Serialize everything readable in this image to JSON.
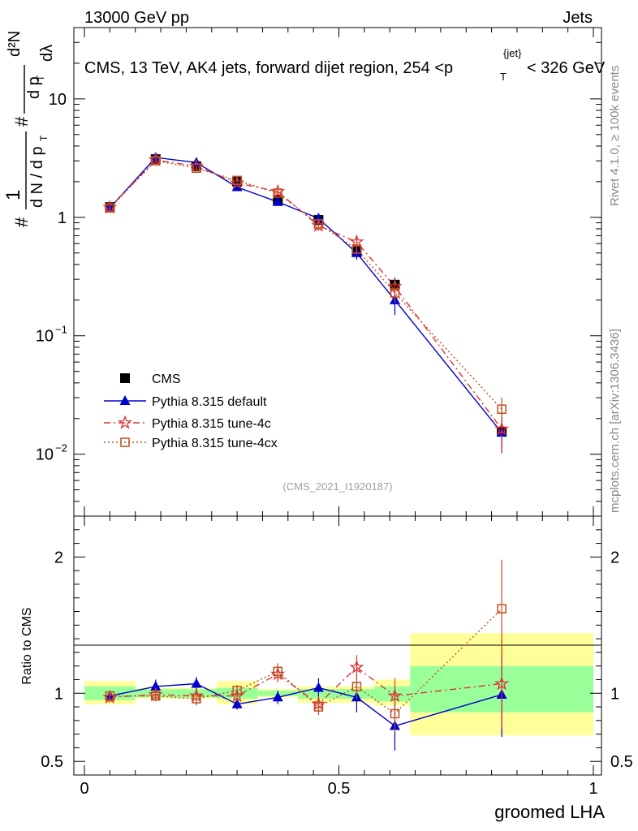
{
  "header": {
    "left": "13000 GeV pp",
    "right": "Jets"
  },
  "title": "CMS, 13 TeV, AK4 jets, forward dijet region, 254 <p",
  "title_sup": "{jet}",
  "title_sub": "T",
  "title_tail": "< 326 GeV",
  "side_text_top": "Rivet 4.1.0, ≥ 100k events",
  "side_text_bottom": "mcplots.cern.ch [arXiv:1306.3436]",
  "analysis_id": "(CMS_2021_I1920187)",
  "ylabel_main": {
    "hash1": "#",
    "one": "1",
    "dN": "d N / d p",
    "dN_sub": "T",
    "hash2": "#",
    "d2N": "d²N",
    "dp": "d p",
    "dp_sub": "T",
    "dl": "dλ"
  },
  "ylabel_ratio": "Ratio to CMS",
  "xlabel": "groomed LHA",
  "colors": {
    "cms": "#000000",
    "default": "#0000cc",
    "tune4c": "#dd3333",
    "tune4cx": "#c05020",
    "band_yellow": "#ffff99",
    "band_green": "#99ff99"
  },
  "chart_data": {
    "type": "scatter",
    "x": [
      0.05,
      0.14,
      0.22,
      0.3,
      0.38,
      0.46,
      0.535,
      0.61,
      0.82
    ],
    "xbins": [
      [
        0,
        0.1
      ],
      [
        0.1,
        0.18
      ],
      [
        0.18,
        0.26
      ],
      [
        0.26,
        0.34
      ],
      [
        0.34,
        0.42
      ],
      [
        0.42,
        0.5
      ],
      [
        0.5,
        0.57
      ],
      [
        0.57,
        0.64
      ],
      [
        0.64,
        1.0
      ]
    ],
    "xlim": [
      0,
      1
    ],
    "xticks": [
      "0",
      "0.5",
      "1"
    ],
    "ylim_main": [
      0.003,
      40
    ],
    "yscale_main": "log",
    "yticks_main": [
      {
        "v": 10,
        "base": "10",
        "exp": ""
      },
      {
        "v": 1,
        "base": "1",
        "exp": ""
      },
      {
        "v": 0.1,
        "base": "10",
        "exp": "−1"
      },
      {
        "v": 0.01,
        "base": "10",
        "exp": "−2"
      }
    ],
    "ylim_ratio": [
      0.4,
      2.3
    ],
    "yticks_ratio": [
      "0.5",
      "1",
      "2"
    ],
    "ytick_ratio_values": [
      0.5,
      1,
      2
    ],
    "series": [
      {
        "name": "CMS",
        "key": "cms",
        "marker": "square",
        "values": [
          1.22,
          3.1,
          2.7,
          2.0,
          1.4,
          0.95,
          0.52,
          0.27,
          0.0155
        ],
        "err": [
          0.06,
          0.1,
          0.1,
          0.08,
          0.07,
          0.06,
          0.05,
          0.04,
          0.004
        ],
        "ratio": [
          1,
          1,
          1,
          1,
          1,
          1,
          1,
          1,
          1
        ]
      },
      {
        "name": "Pythia 8.315 default",
        "key": "default",
        "marker": "triangle",
        "line": "solid",
        "values": [
          1.2,
          3.2,
          2.9,
          1.8,
          1.35,
          0.98,
          0.5,
          0.2,
          0.0152
        ],
        "err": [
          0.04,
          0.1,
          0.1,
          0.07,
          0.07,
          0.08,
          0.06,
          0.05,
          0.005
        ],
        "ratio": [
          0.98,
          1.05,
          1.07,
          0.92,
          0.97,
          1.04,
          0.97,
          0.76,
          0.99
        ],
        "ratio_err": [
          0.04,
          0.05,
          0.05,
          0.04,
          0.05,
          0.07,
          0.11,
          0.18,
          0.31
        ]
      },
      {
        "name": "Pythia 8.315 tune-4c",
        "key": "tune4c",
        "marker": "star",
        "line": "dashdot",
        "values": [
          1.21,
          3.05,
          2.7,
          1.95,
          1.65,
          0.85,
          0.62,
          0.26,
          0.0163
        ],
        "err": [
          0.04,
          0.1,
          0.1,
          0.07,
          0.08,
          0.08,
          0.07,
          0.04,
          0.006
        ],
        "ratio": [
          0.97,
          0.99,
          0.98,
          0.98,
          1.14,
          0.92,
          1.19,
          0.98,
          1.07
        ],
        "ratio_err": [
          0.04,
          0.04,
          0.05,
          0.04,
          0.06,
          0.06,
          0.09,
          0.13,
          0.33
        ]
      },
      {
        "name": "Pythia 8.315 tune-4cx",
        "key": "tune4cx",
        "marker": "opensquare",
        "line": "dotted",
        "values": [
          1.2,
          3.0,
          2.6,
          2.05,
          1.6,
          0.88,
          0.54,
          0.23,
          0.024
        ],
        "err": [
          0.04,
          0.1,
          0.1,
          0.07,
          0.08,
          0.07,
          0.06,
          0.04,
          0.006
        ],
        "ratio": [
          0.98,
          0.98,
          0.96,
          1.02,
          1.16,
          0.9,
          1.05,
          0.85,
          1.62
        ],
        "ratio_err": [
          0.04,
          0.04,
          0.05,
          0.04,
          0.06,
          0.06,
          0.09,
          0.14,
          0.36
        ]
      }
    ],
    "ratio_bands": [
      {
        "x0": 0.0,
        "x1": 0.1,
        "y_lo": 0.92,
        "y_hi": 1.09,
        "g_lo": 0.95,
        "g_hi": 1.05
      },
      {
        "x0": 0.1,
        "x1": 0.26,
        "y_lo": 0.96,
        "y_hi": 1.04,
        "g_lo": 0.97,
        "g_hi": 1.03
      },
      {
        "x0": 0.26,
        "x1": 0.34,
        "y_lo": 0.92,
        "y_hi": 1.09,
        "g_lo": 0.96,
        "g_hi": 1.04
      },
      {
        "x0": 0.34,
        "x1": 0.42,
        "y_lo": 0.97,
        "y_hi": 1.03,
        "g_lo": 0.98,
        "g_hi": 1.02
      },
      {
        "x0": 0.42,
        "x1": 0.57,
        "y_lo": 0.93,
        "y_hi": 1.05,
        "g_lo": 0.96,
        "g_hi": 1.03
      },
      {
        "x0": 0.57,
        "x1": 0.64,
        "y_lo": 0.91,
        "y_hi": 1.1,
        "g_lo": 0.94,
        "g_hi": 1.05
      },
      {
        "x0": 0.64,
        "x1": 1.0,
        "y_lo": 0.69,
        "y_hi": 1.44,
        "g_lo": 0.86,
        "g_hi": 1.2
      }
    ]
  }
}
